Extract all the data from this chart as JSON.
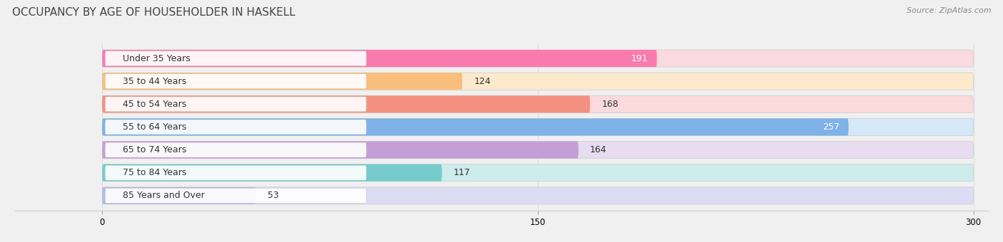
{
  "title": "OCCUPANCY BY AGE OF HOUSEHOLDER IN HASKELL",
  "source": "Source: ZipAtlas.com",
  "categories": [
    "Under 35 Years",
    "35 to 44 Years",
    "45 to 54 Years",
    "55 to 64 Years",
    "65 to 74 Years",
    "75 to 84 Years",
    "85 Years and Over"
  ],
  "values": [
    191,
    124,
    168,
    257,
    164,
    117,
    53
  ],
  "bar_colors": [
    "#F97BAE",
    "#F9BE7C",
    "#F49080",
    "#7EB2E8",
    "#C49FD5",
    "#76CCCC",
    "#B8B8EA"
  ],
  "bar_bg_colors": [
    "#FAD9E0",
    "#FDE9CC",
    "#FADADB",
    "#D5E8F7",
    "#E7DCF0",
    "#CEECEC",
    "#DCDCF5"
  ],
  "value_colors": [
    "white",
    "black",
    "black",
    "white",
    "black",
    "black",
    "black"
  ],
  "xlim": [
    -30,
    300
  ],
  "xmin": 0,
  "xmax": 300,
  "xticks": [
    0,
    150,
    300
  ],
  "background_color": "#f0f0f0",
  "bar_height": 0.75,
  "title_fontsize": 11,
  "label_fontsize": 9,
  "value_fontsize": 9,
  "source_fontsize": 8
}
